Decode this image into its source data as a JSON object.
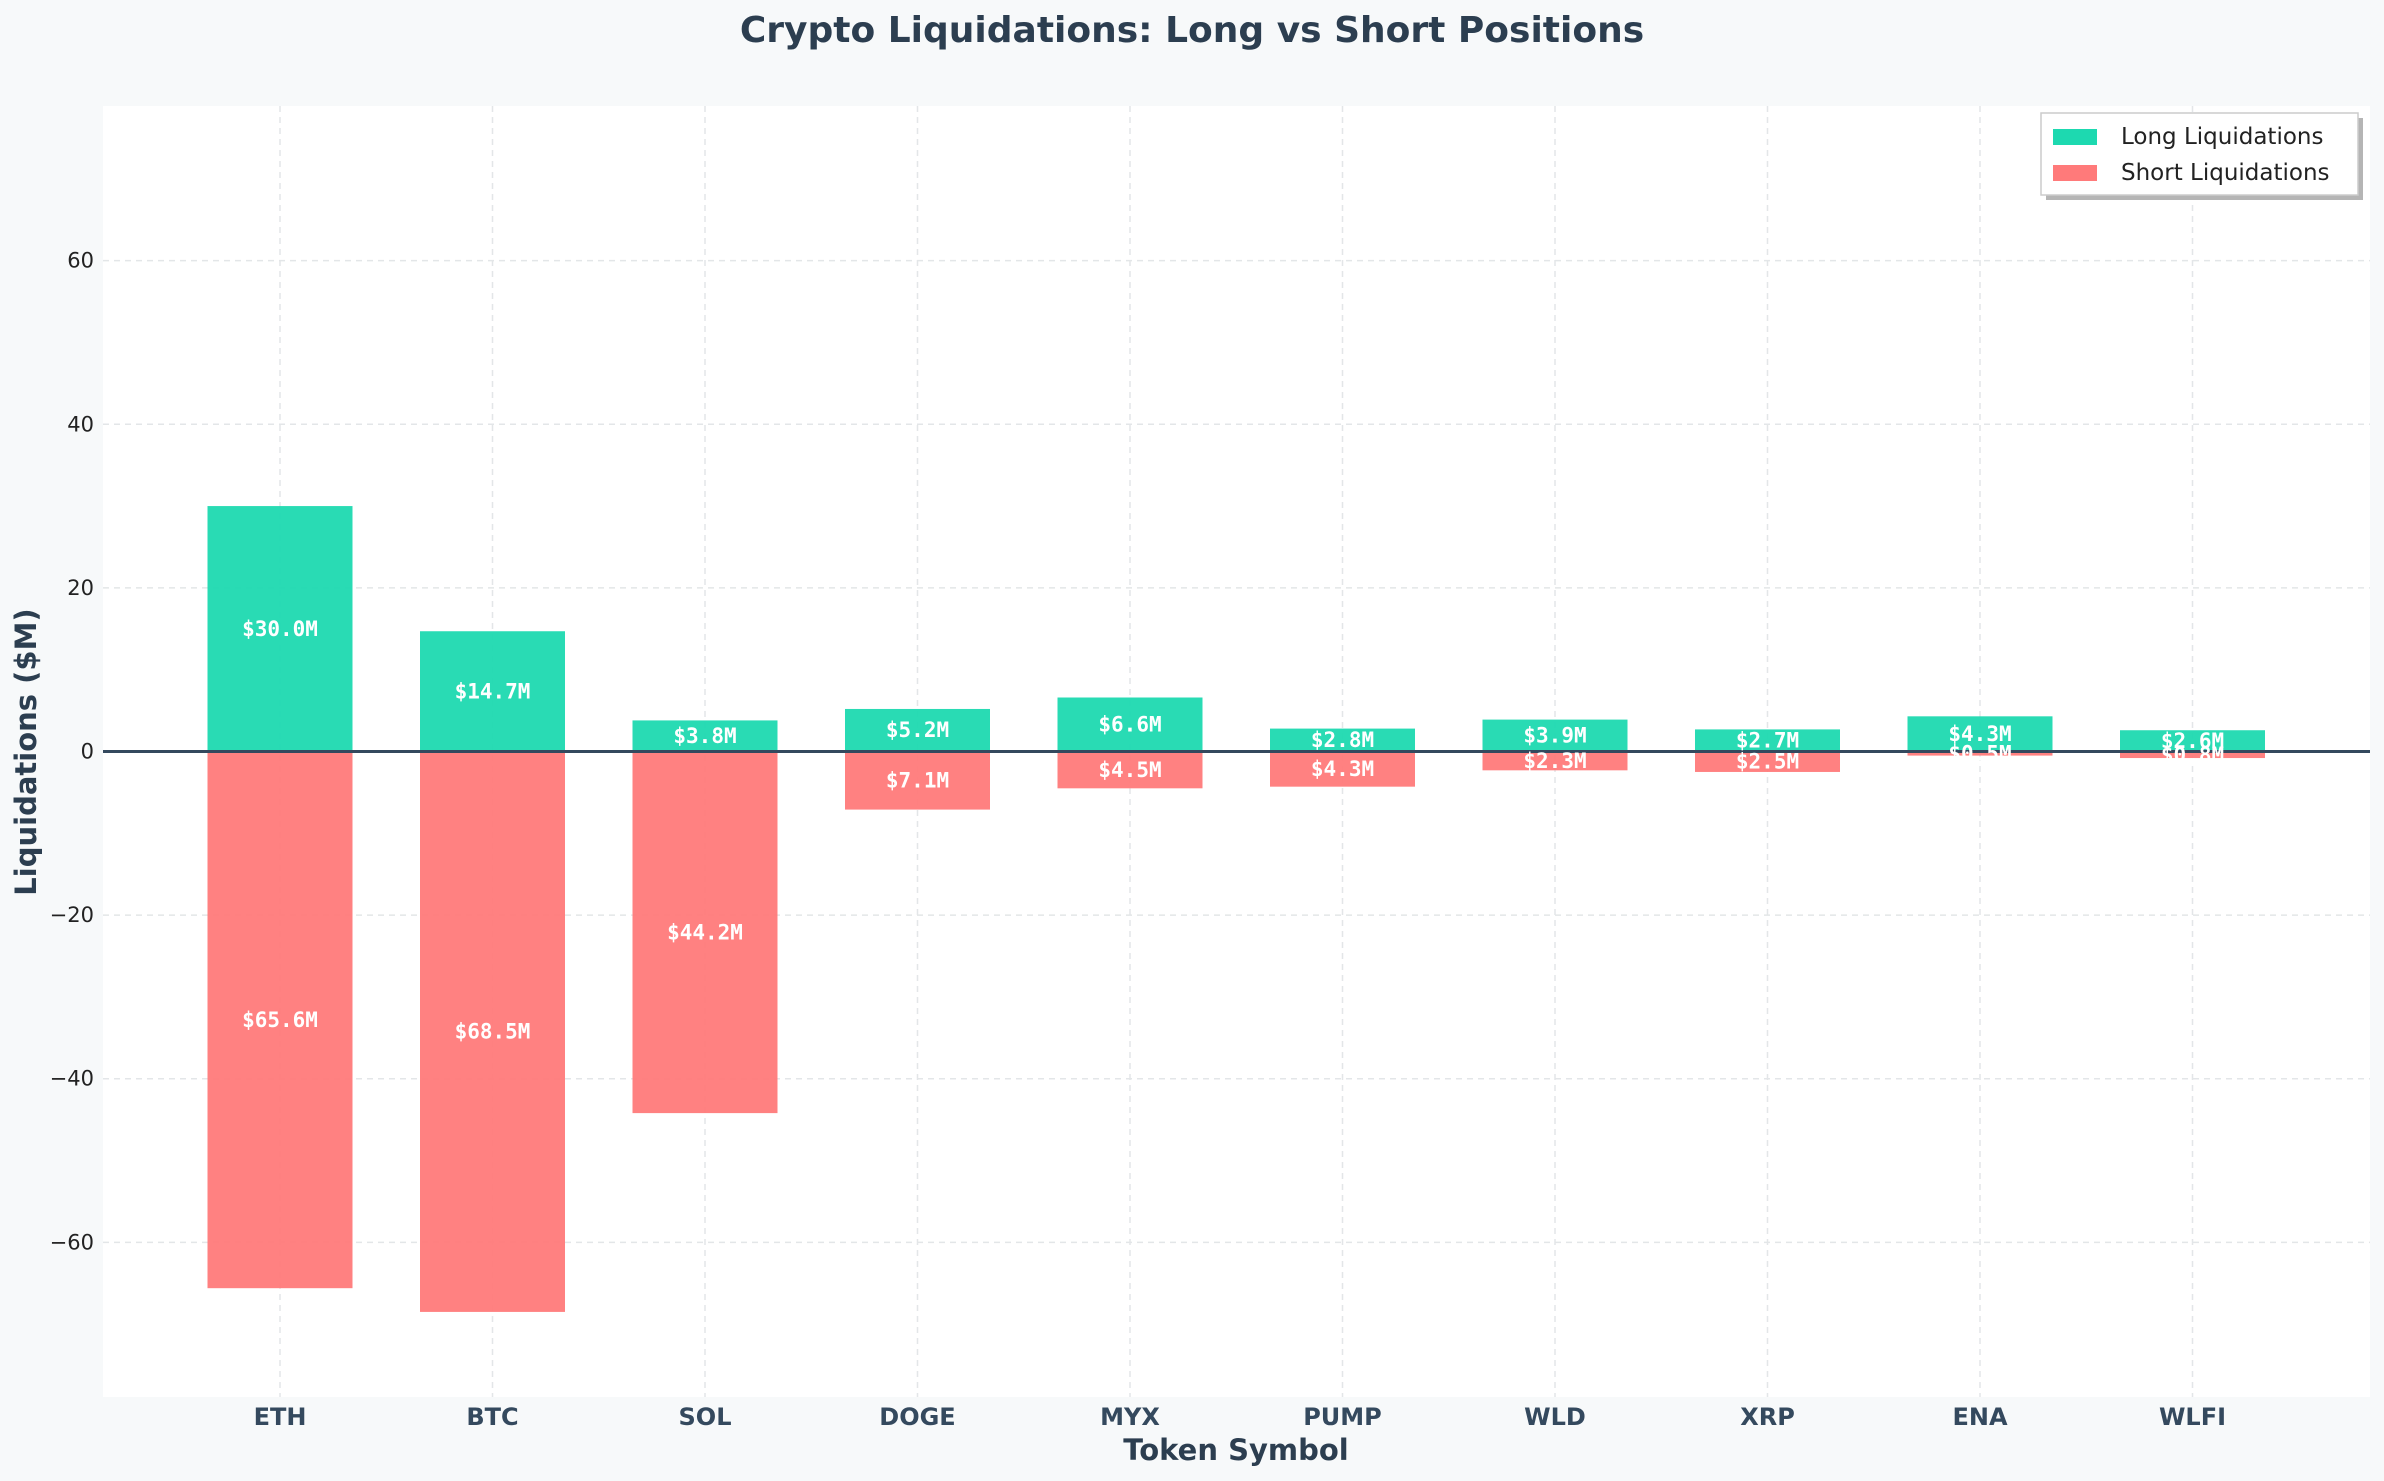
{
  "chart_data": {
    "type": "bar",
    "title": "Crypto Liquidations: Long vs Short Positions",
    "xlabel": "Token Symbol",
    "ylabel": "Liquidations ($M)",
    "categories": [
      "ETH",
      "BTC",
      "SOL",
      "DOGE",
      "MYX",
      "PUMP",
      "WLD",
      "XRP",
      "ENA",
      "WLFI"
    ],
    "series": [
      {
        "name": "Long Liquidations",
        "color": "#1dd9b0",
        "values": [
          30.0,
          14.7,
          3.8,
          5.2,
          6.6,
          2.8,
          3.9,
          2.7,
          4.3,
          2.6
        ],
        "labels": [
          "$30.0M",
          "$14.7M",
          "$3.8M",
          "$5.2M",
          "$6.6M",
          "$2.8M",
          "$3.9M",
          "$2.7M",
          "$4.3M",
          "$2.6M"
        ]
      },
      {
        "name": "Short Liquidations",
        "color": "#ff7a7a",
        "values": [
          -65.6,
          -68.5,
          -44.2,
          -7.1,
          -4.5,
          -4.3,
          -2.3,
          -2.5,
          -0.5,
          -0.8
        ],
        "labels": [
          "$65.6M",
          "$68.5M",
          "$44.2M",
          "$7.1M",
          "$4.5M",
          "$4.3M",
          "$2.3M",
          "$2.5M",
          "$0.5M",
          "$0.8M"
        ]
      }
    ],
    "ylim": [
      -78.9,
      78.9
    ],
    "yticks": [
      60,
      40,
      20,
      0,
      -20,
      -40,
      -60
    ],
    "ytick_labels": [
      "60",
      "40",
      "20",
      "0",
      "−20",
      "−40",
      "−60"
    ],
    "grid": true,
    "legend_position": "top-right"
  }
}
